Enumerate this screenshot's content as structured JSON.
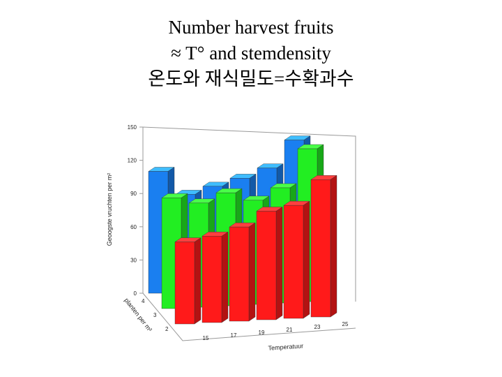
{
  "chart_data": {
    "type": "bar3d",
    "title": [
      "Number harvest fruits",
      "≈  T° and stemdensity",
      "온도와 재식밀도=수확과수"
    ],
    "x_label": "Temperatuur",
    "depth_label": "planten per m²",
    "z_label": "Geoogste vruchten per m²",
    "categories": [
      "15",
      "17",
      "19",
      "21",
      "23",
      "25"
    ],
    "series": [
      {
        "name": "4",
        "color": "#1a7ff0",
        "values": [
          110,
          88,
          94,
          100,
          108,
          132
        ]
      },
      {
        "name": "3",
        "color": "#22ee22",
        "values": [
          100,
          94,
          102,
          94,
          104,
          138
        ]
      },
      {
        "name": "2",
        "color": "#ff1a1a",
        "values": [
          74,
          78,
          85,
          98,
          102,
          124
        ]
      }
    ],
    "zlim": [
      0,
      150
    ],
    "zticks": [
      0,
      30,
      60,
      90,
      120,
      150
    ]
  }
}
